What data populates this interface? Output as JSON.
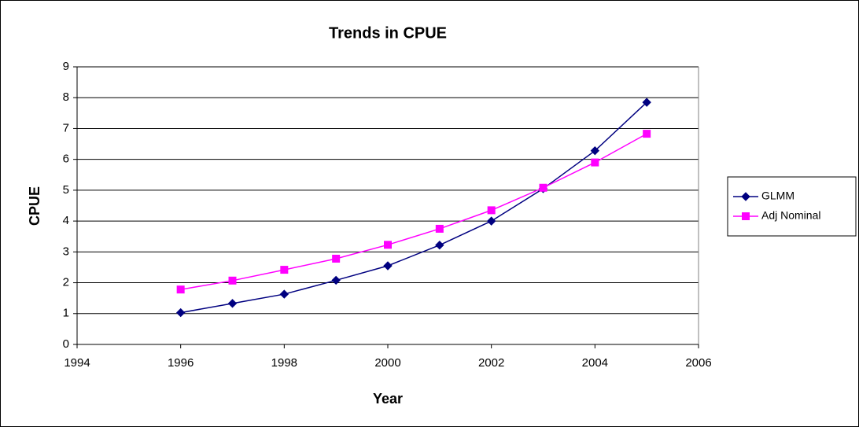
{
  "chart_data": {
    "type": "line",
    "title": "Trends in CPUE",
    "xlabel": "Year",
    "ylabel": "CPUE",
    "series": [
      {
        "name": "GLMM",
        "color": "#000080",
        "marker": "diamond",
        "x": [
          1996,
          1997,
          1998,
          1999,
          2000,
          2001,
          2002,
          2003,
          2004,
          2005
        ],
        "values": [
          1.03,
          1.33,
          1.63,
          2.08,
          2.55,
          3.22,
          4.0,
          5.05,
          6.28,
          7.85
        ]
      },
      {
        "name": "Adj Nominal",
        "color": "#ff00ff",
        "marker": "square",
        "x": [
          1996,
          1997,
          1998,
          1999,
          2000,
          2001,
          2002,
          2003,
          2004,
          2005
        ],
        "values": [
          1.78,
          2.07,
          2.42,
          2.78,
          3.23,
          3.75,
          4.35,
          5.08,
          5.9,
          6.83
        ]
      }
    ],
    "xlim": [
      1994,
      2006
    ],
    "xticks": [
      1994,
      1996,
      1998,
      2000,
      2002,
      2004,
      2006
    ],
    "ylim": [
      0,
      9
    ],
    "yticks": [
      0,
      1,
      2,
      3,
      4,
      5,
      6,
      7,
      8,
      9
    ],
    "grid": true,
    "legend": "right"
  }
}
